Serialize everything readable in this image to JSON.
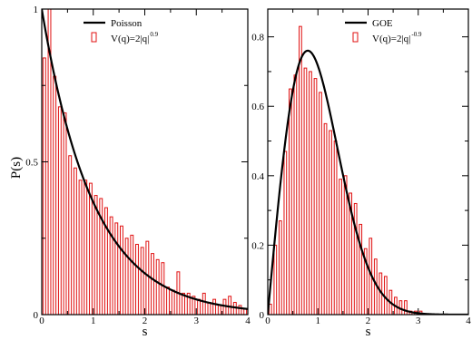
{
  "figure": {
    "ylabel": "P(s)"
  },
  "chart_data": [
    {
      "type": "bar",
      "panel": "left",
      "xlabel": "s",
      "ylabel": "P(s)",
      "xlim": [
        0,
        4
      ],
      "ylim": [
        0,
        1
      ],
      "x_ticks": [
        0,
        1,
        2,
        3,
        4
      ],
      "y_ticks": [
        0,
        0.5,
        1
      ],
      "y_tick_labels": [
        "0",
        "0.5",
        "1"
      ],
      "grid": false,
      "legend_position": "top-right",
      "bin_width": 0.1,
      "series": [
        {
          "name": "Poisson",
          "kind": "line",
          "color": "#000000",
          "formula": "exp(-s)",
          "legend_text": "Poisson"
        },
        {
          "name": "V(q)=2|q|^0.9",
          "kind": "histogram",
          "color": "#e01010",
          "legend_text": "V(q)=2|q|",
          "legend_exponent": "0.9",
          "x": [
            0.05,
            0.15,
            0.25,
            0.35,
            0.45,
            0.55,
            0.65,
            0.75,
            0.85,
            0.95,
            1.05,
            1.15,
            1.25,
            1.35,
            1.45,
            1.55,
            1.65,
            1.75,
            1.85,
            1.95,
            2.05,
            2.15,
            2.25,
            2.35,
            2.45,
            2.55,
            2.65,
            2.75,
            2.85,
            2.95,
            3.05,
            3.15,
            3.25,
            3.35,
            3.45,
            3.55,
            3.65,
            3.75,
            3.85,
            3.95
          ],
          "values": [
            0.84,
            1.0,
            0.78,
            0.68,
            0.66,
            0.52,
            0.48,
            0.44,
            0.44,
            0.43,
            0.39,
            0.38,
            0.35,
            0.32,
            0.3,
            0.29,
            0.25,
            0.26,
            0.23,
            0.22,
            0.24,
            0.2,
            0.18,
            0.17,
            0.09,
            0.08,
            0.14,
            0.07,
            0.07,
            0.06,
            0.05,
            0.07,
            0.04,
            0.05,
            0.03,
            0.05,
            0.06,
            0.04,
            0.03,
            0.02
          ]
        }
      ]
    },
    {
      "type": "bar",
      "panel": "right",
      "xlabel": "s",
      "xlim": [
        0,
        4
      ],
      "ylim": [
        0,
        0.88
      ],
      "x_ticks": [
        0,
        1,
        2,
        3,
        4
      ],
      "y_ticks": [
        0,
        0.2,
        0.4,
        0.6,
        0.8
      ],
      "y_tick_labels": [
        "0",
        "0.2",
        "0.4",
        "0.6",
        "0.8"
      ],
      "grid": false,
      "legend_position": "top-right",
      "bin_width": 0.1,
      "series": [
        {
          "name": "GOE",
          "kind": "line",
          "color": "#000000",
          "formula": "(pi/2) s exp(-pi s^2 / 4)",
          "legend_text": "GOE"
        },
        {
          "name": "V(q)=2|q|^-0.9",
          "kind": "histogram",
          "color": "#e01010",
          "legend_text": "V(q)=2|q|",
          "legend_exponent": "-0.9",
          "x": [
            0.05,
            0.15,
            0.25,
            0.35,
            0.45,
            0.55,
            0.65,
            0.75,
            0.85,
            0.95,
            1.05,
            1.15,
            1.25,
            1.35,
            1.45,
            1.55,
            1.65,
            1.75,
            1.85,
            1.95,
            2.05,
            2.15,
            2.25,
            2.35,
            2.45,
            2.55,
            2.65,
            2.75,
            2.85,
            2.95,
            3.05,
            3.15,
            3.25,
            3.35,
            3.45,
            3.55,
            3.65,
            3.75,
            3.85,
            3.95
          ],
          "values": [
            0.03,
            0.2,
            0.27,
            0.47,
            0.65,
            0.69,
            0.83,
            0.71,
            0.7,
            0.68,
            0.64,
            0.55,
            0.53,
            0.5,
            0.39,
            0.4,
            0.35,
            0.32,
            0.26,
            0.19,
            0.22,
            0.16,
            0.12,
            0.11,
            0.07,
            0.05,
            0.04,
            0.04,
            0.01,
            0.01,
            0.01,
            0.0,
            0.0,
            0.0,
            0.0,
            0.0,
            0.0,
            0.0,
            0.0,
            0.0
          ]
        }
      ]
    }
  ]
}
